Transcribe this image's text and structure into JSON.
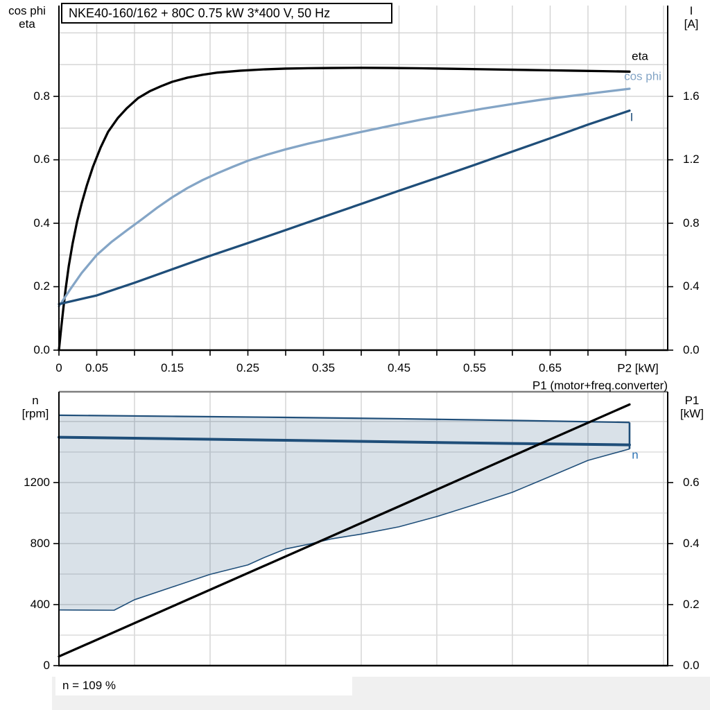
{
  "title": "NKE40-160/162 + 80C   0.75 kW   3*400 V, 50 Hz",
  "colors": {
    "eta": "#000000",
    "cos_phi": "#84a5c6",
    "current": "#1f4e79",
    "n_line": "#1f4e79",
    "n_label": "#2e74b5",
    "envelope_fill": "rgba(31,78,121,0.17)",
    "envelope_edge": "#1f4e79",
    "p1_line": "#000000",
    "grid": "#d2d2d2",
    "grid_minor": "#dcdcdc",
    "axis": "#000000",
    "bottom_top_border": "#7f7f7f"
  },
  "chart_data": [
    {
      "type": "line",
      "title": "NKE40-160/162 + 80C   0.75 kW   3*400 V, 50 Hz",
      "x_axis": {
        "label": "P2 [kW]",
        "range": [
          0,
          0.8055
        ],
        "grid_step": 0.05,
        "tick_step": 0.05,
        "tick_max": 0.75,
        "labeled_ticks": [
          {
            "v": 0,
            "t": "0"
          },
          {
            "v": 0.05,
            "t": "0.05"
          },
          {
            "v": 0.15,
            "t": "0.15"
          },
          {
            "v": 0.25,
            "t": "0.25"
          },
          {
            "v": 0.35,
            "t": "0.35"
          },
          {
            "v": 0.45,
            "t": "0.45"
          },
          {
            "v": 0.55,
            "t": "0.55"
          },
          {
            "v": 0.65,
            "t": "0.65"
          }
        ]
      },
      "left_axis": {
        "label": [
          "cos phi",
          "eta"
        ],
        "range": [
          0,
          1.0863
        ],
        "grid_step": 0.1,
        "labeled_ticks": [
          {
            "v": 0.0,
            "t": "0.0"
          },
          {
            "v": 0.2,
            "t": "0.2"
          },
          {
            "v": 0.4,
            "t": "0.4"
          },
          {
            "v": 0.6,
            "t": "0.6"
          },
          {
            "v": 0.8,
            "t": "0.8"
          }
        ]
      },
      "right_axis": {
        "label": [
          "I",
          "[A]"
        ],
        "range": [
          0,
          2.1726
        ],
        "labeled_ticks": [
          {
            "v": 0.0,
            "t": "0.0"
          },
          {
            "v": 0.4,
            "t": "0.4"
          },
          {
            "v": 0.8,
            "t": "0.8"
          },
          {
            "v": 1.2,
            "t": "1.2"
          },
          {
            "v": 1.6,
            "t": "1.6"
          }
        ]
      },
      "series": [
        {
          "name": "eta",
          "axis": "left",
          "label": "eta",
          "points": [
            [
              0,
              0
            ],
            [
              0.003,
              0.07
            ],
            [
              0.006,
              0.135
            ],
            [
              0.009,
              0.195
            ],
            [
              0.013,
              0.265
            ],
            [
              0.018,
              0.335
            ],
            [
              0.024,
              0.405
            ],
            [
              0.03,
              0.462
            ],
            [
              0.037,
              0.52
            ],
            [
              0.045,
              0.578
            ],
            [
              0.055,
              0.638
            ],
            [
              0.065,
              0.688
            ],
            [
              0.078,
              0.732
            ],
            [
              0.09,
              0.763
            ],
            [
              0.105,
              0.795
            ],
            [
              0.12,
              0.816
            ],
            [
              0.135,
              0.832
            ],
            [
              0.15,
              0.846
            ],
            [
              0.17,
              0.859
            ],
            [
              0.19,
              0.868
            ],
            [
              0.21,
              0.875
            ],
            [
              0.24,
              0.881
            ],
            [
              0.27,
              0.885
            ],
            [
              0.3,
              0.8875
            ],
            [
              0.33,
              0.8888
            ],
            [
              0.36,
              0.8895
            ],
            [
              0.4,
              0.89
            ],
            [
              0.44,
              0.8895
            ],
            [
              0.48,
              0.8885
            ],
            [
              0.52,
              0.887
            ],
            [
              0.56,
              0.8855
            ],
            [
              0.6,
              0.884
            ],
            [
              0.64,
              0.8825
            ],
            [
              0.68,
              0.881
            ],
            [
              0.72,
              0.8795
            ],
            [
              0.755,
              0.878
            ]
          ]
        },
        {
          "name": "cos phi",
          "axis": "left",
          "label": "cos phi",
          "points": [
            [
              0,
              0.138
            ],
            [
              0.015,
              0.192
            ],
            [
              0.03,
              0.243
            ],
            [
              0.05,
              0.3
            ],
            [
              0.07,
              0.342
            ],
            [
              0.09,
              0.378
            ],
            [
              0.11,
              0.413
            ],
            [
              0.13,
              0.449
            ],
            [
              0.15,
              0.482
            ],
            [
              0.17,
              0.511
            ],
            [
              0.19,
              0.536
            ],
            [
              0.21,
              0.558
            ],
            [
              0.23,
              0.578
            ],
            [
              0.25,
              0.597
            ],
            [
              0.275,
              0.616
            ],
            [
              0.3,
              0.633
            ],
            [
              0.33,
              0.651
            ],
            [
              0.36,
              0.667
            ],
            [
              0.4,
              0.688
            ],
            [
              0.44,
              0.708
            ],
            [
              0.48,
              0.727
            ],
            [
              0.52,
              0.744
            ],
            [
              0.56,
              0.761
            ],
            [
              0.6,
              0.776
            ],
            [
              0.64,
              0.79
            ],
            [
              0.68,
              0.802
            ],
            [
              0.72,
              0.814
            ],
            [
              0.755,
              0.824
            ]
          ]
        },
        {
          "name": "I",
          "axis": "right",
          "label": "I",
          "points": [
            [
              0,
              0.29
            ],
            [
              0.05,
              0.345
            ],
            [
              0.1,
              0.425
            ],
            [
              0.15,
              0.51
            ],
            [
              0.2,
              0.595
            ],
            [
              0.25,
              0.675
            ],
            [
              0.3,
              0.757
            ],
            [
              0.35,
              0.84
            ],
            [
              0.4,
              0.922
            ],
            [
              0.45,
              1.005
            ],
            [
              0.5,
              1.086
            ],
            [
              0.55,
              1.168
            ],
            [
              0.6,
              1.252
            ],
            [
              0.65,
              1.336
            ],
            [
              0.7,
              1.422
            ],
            [
              0.755,
              1.51
            ]
          ]
        }
      ]
    },
    {
      "type": "line+area",
      "x_axis": {
        "label": "",
        "range": [
          0,
          0.8055
        ],
        "grid_step": 0.1
      },
      "left_axis": {
        "label": [
          "n",
          "[rpm]"
        ],
        "range": [
          0,
          1795
        ],
        "grid_step": 200,
        "labeled_ticks": [
          {
            "v": 0,
            "t": "0"
          },
          {
            "v": 400,
            "t": "400"
          },
          {
            "v": 800,
            "t": "800"
          },
          {
            "v": 1200,
            "t": "1200"
          }
        ]
      },
      "right_axis": {
        "label": [
          "P1",
          "[kW]"
        ],
        "range": [
          0,
          0.8977
        ],
        "labeled_ticks": [
          {
            "v": 0.0,
            "t": "0.0"
          },
          {
            "v": 0.2,
            "t": "0.2"
          },
          {
            "v": 0.4,
            "t": "0.4"
          },
          {
            "v": 0.6,
            "t": "0.6"
          }
        ]
      },
      "series": [
        {
          "name": "n",
          "axis": "left",
          "label": "n",
          "points": [
            [
              0,
              1497
            ],
            [
              0.15,
              1487
            ],
            [
              0.3,
              1477
            ],
            [
              0.45,
              1466
            ],
            [
              0.6,
              1456
            ],
            [
              0.755,
              1447
            ]
          ]
        },
        {
          "name": "P1 (motor+freq.converter)",
          "axis": "right",
          "label": "P1 (motor+freq.converter)",
          "points": [
            [
              0,
              0.03
            ],
            [
              0.15,
              0.194
            ],
            [
              0.3,
              0.358
            ],
            [
              0.45,
              0.522
            ],
            [
              0.6,
              0.687
            ],
            [
              0.755,
              0.856
            ]
          ]
        }
      ],
      "envelope": {
        "name": "speed operating range",
        "upper": [
          [
            0,
            1641
          ],
          [
            0.15,
            1634
          ],
          [
            0.3,
            1627
          ],
          [
            0.45,
            1618
          ],
          [
            0.6,
            1607
          ],
          [
            0.755,
            1594
          ]
        ],
        "lower": [
          [
            0,
            365
          ],
          [
            0.073,
            363
          ],
          [
            0.1,
            432
          ],
          [
            0.15,
            515
          ],
          [
            0.2,
            598
          ],
          [
            0.25,
            660
          ],
          [
            0.27,
            705
          ],
          [
            0.3,
            765
          ],
          [
            0.33,
            795
          ],
          [
            0.36,
            830
          ],
          [
            0.4,
            862
          ],
          [
            0.45,
            910
          ],
          [
            0.5,
            977
          ],
          [
            0.55,
            1055
          ],
          [
            0.6,
            1136
          ],
          [
            0.65,
            1240
          ],
          [
            0.7,
            1345
          ],
          [
            0.755,
            1420
          ]
        ]
      },
      "note": "n = 109 %"
    }
  ],
  "labels": {
    "top_left_line1": "cos phi",
    "top_left_line2": "eta",
    "top_right_line1": "I",
    "top_right_line2": "[A]",
    "x_axis_label": "P2 [kW]",
    "curve_eta": "eta",
    "curve_cos_phi": "cos phi",
    "curve_current": "I",
    "p1_annotation": "P1 (motor+freq.converter)",
    "bottom_left_line1": "n",
    "bottom_left_line2": "[rpm]",
    "bottom_right_line1": "P1",
    "bottom_right_line2": "[kW]",
    "curve_n": "n",
    "note": "n = 109 %"
  }
}
